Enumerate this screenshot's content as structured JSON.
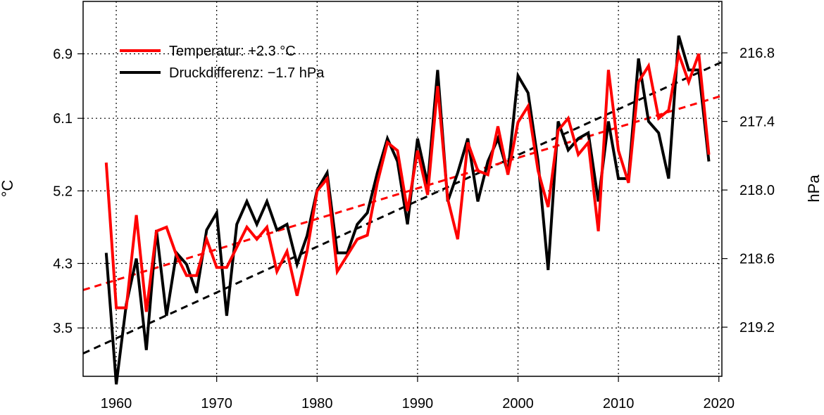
{
  "chart_data": {
    "type": "line",
    "title": "",
    "xlabel": "",
    "ylabel_left": "°C",
    "ylabel_right": "hPa",
    "xlim": [
      1956.7,
      2020.3
    ],
    "ylim_left": [
      2.9,
      7.55
    ],
    "ylim_right_reversed": [
      219.63,
      216.35
    ],
    "x_ticks": [
      1960,
      1970,
      1980,
      1990,
      2000,
      2010,
      2020
    ],
    "y_ticks_left": [
      3.5,
      4.3,
      5.2,
      6.1,
      6.9
    ],
    "y_tick_labels_left": [
      "3.5",
      "4.3",
      "5.2",
      "6.1",
      "6.9"
    ],
    "y_ticks_right": [
      219.2,
      218.6,
      218.0,
      217.4,
      216.8
    ],
    "y_tick_labels_right": [
      "219.2",
      "218.6",
      "218.0",
      "217.4",
      "216.8"
    ],
    "grid": true,
    "legend_position": "top-left",
    "years": [
      1959,
      1960,
      1961,
      1962,
      1963,
      1964,
      1965,
      1966,
      1967,
      1968,
      1969,
      1970,
      1971,
      1972,
      1973,
      1974,
      1975,
      1976,
      1977,
      1978,
      1979,
      1980,
      1981,
      1982,
      1983,
      1984,
      1985,
      1986,
      1987,
      1988,
      1989,
      1990,
      1991,
      1992,
      1993,
      1994,
      1995,
      1996,
      1997,
      1998,
      1999,
      2000,
      2001,
      2002,
      2003,
      2004,
      2005,
      2006,
      2007,
      2008,
      2009,
      2010,
      2011,
      2012,
      2013,
      2014,
      2015,
      2016,
      2017,
      2018,
      2019
    ],
    "series": [
      {
        "name": "Druckdifferenz: −1.7 hPa",
        "axis": "right",
        "color": "#000000",
        "values": [
          218.55,
          219.7,
          219.0,
          218.6,
          219.4,
          218.35,
          219.1,
          218.55,
          218.65,
          218.9,
          218.35,
          218.2,
          219.1,
          218.3,
          218.1,
          218.3,
          218.1,
          218.35,
          218.3,
          218.65,
          218.4,
          218.0,
          217.85,
          218.55,
          218.55,
          218.3,
          218.2,
          217.85,
          217.55,
          217.75,
          218.3,
          217.55,
          217.95,
          216.95,
          218.1,
          217.85,
          217.55,
          218.1,
          217.75,
          217.55,
          217.85,
          217.0,
          217.15,
          217.75,
          218.7,
          217.4,
          217.65,
          217.55,
          217.5,
          218.1,
          217.4,
          217.9,
          217.9,
          216.85,
          217.4,
          217.5,
          217.9,
          216.65,
          216.95,
          216.95,
          217.75
        ]
      },
      {
        "name": "Temperatur: +2.3 °C",
        "axis": "left",
        "color": "#ff0000",
        "values": [
          5.55,
          3.75,
          3.75,
          4.9,
          3.7,
          4.7,
          4.75,
          4.4,
          4.15,
          4.15,
          4.6,
          4.25,
          4.25,
          4.5,
          4.75,
          4.6,
          4.75,
          4.2,
          4.45,
          3.9,
          4.45,
          5.2,
          5.35,
          4.2,
          4.4,
          4.6,
          4.65,
          5.3,
          5.8,
          5.7,
          4.95,
          5.7,
          5.15,
          6.5,
          5.1,
          4.6,
          5.8,
          5.45,
          5.4,
          6.0,
          5.4,
          6.05,
          6.25,
          5.45,
          5.0,
          5.95,
          6.1,
          5.65,
          5.8,
          4.7,
          6.7,
          5.7,
          5.3,
          6.55,
          6.75,
          6.1,
          6.2,
          6.9,
          6.55,
          6.9,
          5.65
        ]
      }
    ],
    "trend_lines": [
      {
        "axis": "right",
        "color": "#000000",
        "x": [
          1956.7,
          2020.3
        ],
        "y": [
          219.43,
          216.88
        ]
      },
      {
        "axis": "left",
        "color": "#ff0000",
        "x": [
          1956.7,
          2020.3
        ],
        "y": [
          3.97,
          6.38
        ]
      }
    ]
  }
}
